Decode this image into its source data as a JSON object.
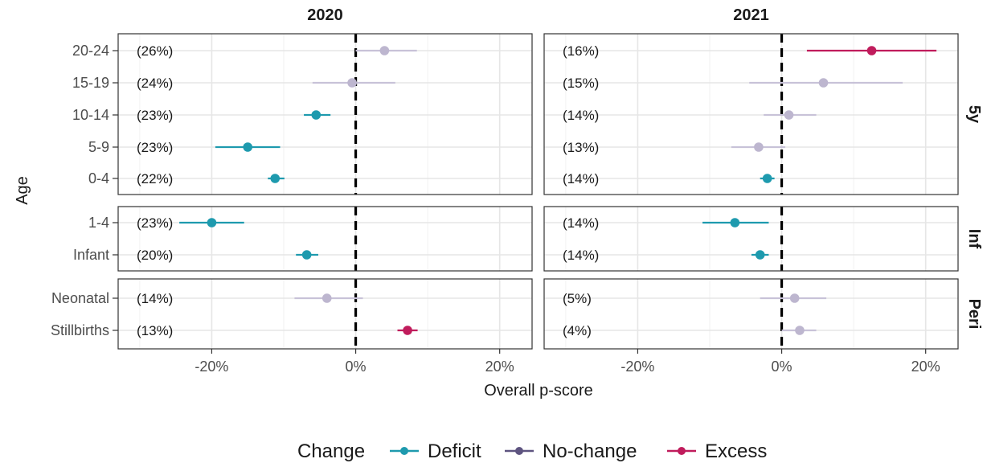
{
  "chart_data": {
    "type": "scatter",
    "subtype": "point-range faceted",
    "xlabel": "Overall p-score",
    "ylabel": "Age",
    "xlim": [
      -0.33,
      0.245
    ],
    "x_ticks": [
      {
        "value": -0.2,
        "label": "-20%"
      },
      {
        "value": 0.0,
        "label": "0%"
      },
      {
        "value": 0.2,
        "label": "20%"
      }
    ],
    "reference_line": {
      "x": 0,
      "style": "dashed"
    },
    "grid": true,
    "columns": [
      "2020",
      "2021"
    ],
    "rows": [
      {
        "strip": "5y",
        "categories": [
          "20-24",
          "15-19",
          "10-14",
          "5-9",
          "0-4"
        ]
      },
      {
        "strip": "Inf",
        "categories": [
          "1-4",
          "Infant"
        ]
      },
      {
        "strip": "Peri",
        "categories": [
          "Neonatal",
          "Stillbirths"
        ]
      }
    ],
    "legend": {
      "title": "Change",
      "position": "bottom",
      "entries": [
        {
          "key": "Deficit",
          "label": "Deficit",
          "color": "#1e9aae"
        },
        {
          "key": "No-change",
          "label": "No-change",
          "color": "#5e5480"
        },
        {
          "key": "Excess",
          "label": "Excess",
          "color": "#c01c5c"
        }
      ]
    },
    "nochange_point_color": "#bdb6cf",
    "nochange_line_color": "#c8c2d8",
    "points": {
      "2020": [
        {
          "category": "20-24",
          "label": "(26%)",
          "value": 0.04,
          "low": 0.0,
          "high": 0.085,
          "change": "No-change"
        },
        {
          "category": "15-19",
          "label": "(24%)",
          "value": -0.005,
          "low": -0.06,
          "high": 0.055,
          "change": "No-change"
        },
        {
          "category": "10-14",
          "label": "(23%)",
          "value": -0.055,
          "low": -0.072,
          "high": -0.035,
          "change": "Deficit"
        },
        {
          "category": "5-9",
          "label": "(23%)",
          "value": -0.15,
          "low": -0.195,
          "high": -0.105,
          "change": "Deficit"
        },
        {
          "category": "0-4",
          "label": "(22%)",
          "value": -0.112,
          "low": -0.122,
          "high": -0.099,
          "change": "Deficit"
        },
        {
          "category": "1-4",
          "label": "(23%)",
          "value": -0.2,
          "low": -0.245,
          "high": -0.155,
          "change": "Deficit"
        },
        {
          "category": "Infant",
          "label": "(20%)",
          "value": -0.068,
          "low": -0.083,
          "high": -0.052,
          "change": "Deficit"
        },
        {
          "category": "Neonatal",
          "label": "(14%)",
          "value": -0.04,
          "low": -0.085,
          "high": 0.01,
          "change": "No-change"
        },
        {
          "category": "Stillbirths",
          "label": "(13%)",
          "value": 0.072,
          "low": 0.058,
          "high": 0.086,
          "change": "Excess"
        }
      ],
      "2021": [
        {
          "category": "20-24",
          "label": "(16%)",
          "value": 0.125,
          "low": 0.035,
          "high": 0.215,
          "change": "Excess"
        },
        {
          "category": "15-19",
          "label": "(15%)",
          "value": 0.058,
          "low": -0.045,
          "high": 0.168,
          "change": "No-change"
        },
        {
          "category": "10-14",
          "label": "(14%)",
          "value": 0.01,
          "low": -0.025,
          "high": 0.048,
          "change": "No-change"
        },
        {
          "category": "5-9",
          "label": "(13%)",
          "value": -0.032,
          "low": -0.07,
          "high": 0.005,
          "change": "No-change"
        },
        {
          "category": "0-4",
          "label": "(14%)",
          "value": -0.02,
          "low": -0.03,
          "high": -0.01,
          "change": "Deficit"
        },
        {
          "category": "1-4",
          "label": "(14%)",
          "value": -0.065,
          "low": -0.11,
          "high": -0.018,
          "change": "Deficit"
        },
        {
          "category": "Infant",
          "label": "(14%)",
          "value": -0.03,
          "low": -0.042,
          "high": -0.018,
          "change": "Deficit"
        },
        {
          "category": "Neonatal",
          "label": "(5%)",
          "value": 0.018,
          "low": -0.03,
          "high": 0.062,
          "change": "No-change"
        },
        {
          "category": "Stillbirths",
          "label": "(4%)",
          "value": 0.025,
          "low": 0.0,
          "high": 0.048,
          "change": "No-change"
        }
      ]
    }
  }
}
